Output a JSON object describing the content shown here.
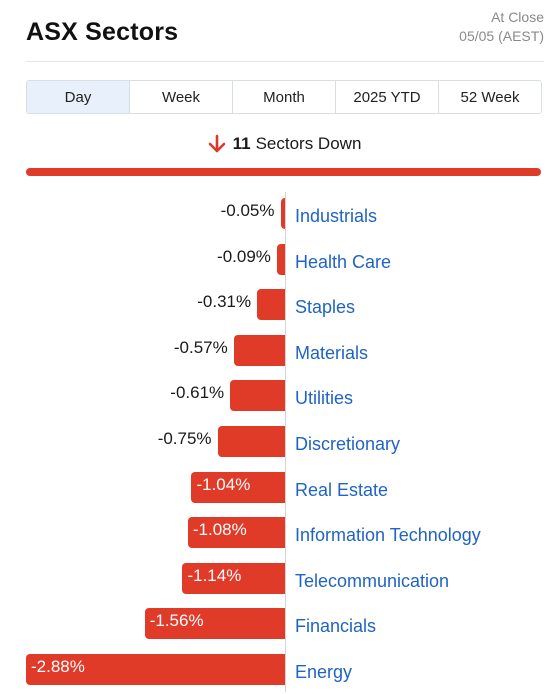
{
  "header": {
    "title": "ASX Sectors",
    "status_line1": "At Close",
    "status_line2": "05/05 (AEST)"
  },
  "tabs": [
    {
      "label": "Day",
      "active": true
    },
    {
      "label": "Week",
      "active": false
    },
    {
      "label": "Month",
      "active": false
    },
    {
      "label": "2025 YTD",
      "active": false
    },
    {
      "label": "52 Week",
      "active": false
    }
  ],
  "summary": {
    "count": "11",
    "text": "Sectors Down",
    "icon": "down-arrow-icon"
  },
  "colors": {
    "negative": "#e03a29",
    "link": "#1f63c6",
    "active_tab": "#e8f1fb"
  },
  "chart_data": {
    "type": "bar",
    "orientation": "horizontal",
    "categories": [
      "Industrials",
      "Health Care",
      "Staples",
      "Materials",
      "Utilities",
      "Discretionary",
      "Real Estate",
      "Information Technology",
      "Telecommunication",
      "Financials",
      "Energy"
    ],
    "values": [
      -0.05,
      -0.09,
      -0.31,
      -0.57,
      -0.61,
      -0.75,
      -1.04,
      -1.08,
      -1.14,
      -1.56,
      -2.88
    ],
    "value_labels": [
      "-0.05%",
      "-0.09%",
      "-0.31%",
      "-0.57%",
      "-0.61%",
      "-0.75%",
      "-1.04%",
      "-1.08%",
      "-1.14%",
      "-1.56%",
      "-2.88%"
    ],
    "unit": "%",
    "xlim": [
      -2.88,
      0
    ],
    "grid": false,
    "legend": "none"
  }
}
